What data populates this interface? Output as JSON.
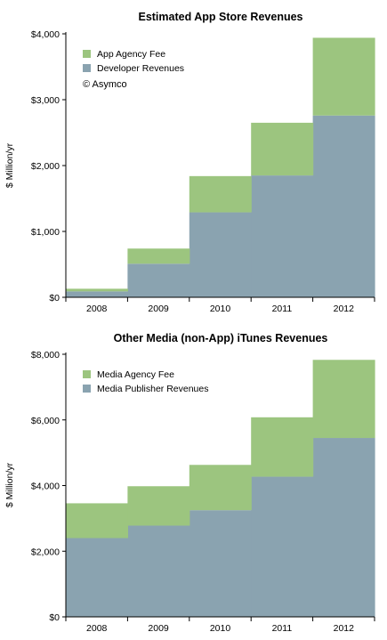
{
  "colors": {
    "fee": "#9cc57f",
    "revenue": "#8aa3b0"
  },
  "copyright": "© Asymco",
  "chart_data": [
    {
      "type": "area",
      "title": "Estimated App Store Revenues",
      "ylabel": "$ Million/yr",
      "xlabel": "",
      "stacked": true,
      "step": true,
      "categories": [
        "2008",
        "2009",
        "2010",
        "2011",
        "2012"
      ],
      "ylim": [
        0,
        4000
      ],
      "yticks": [
        0,
        1000,
        2000,
        3000,
        4000
      ],
      "ytick_labels": [
        "$0",
        "$1,000",
        "$2,000",
        "$3,000",
        "$4,000"
      ],
      "legend_position": "top-left",
      "series": [
        {
          "name": "Developer Revenues",
          "color": "#8aa3b0",
          "values": [
            90,
            510,
            1290,
            1850,
            2760
          ]
        },
        {
          "name": "App Agency Fee",
          "color": "#9cc57f",
          "values": [
            40,
            230,
            550,
            800,
            1180
          ]
        }
      ],
      "legend": [
        "App Agency Fee",
        "Developer Revenues"
      ],
      "grid": false
    },
    {
      "type": "area",
      "title": "Other Media (non-App) iTunes Revenues",
      "ylabel": "$ Million/yr",
      "xlabel": "",
      "stacked": true,
      "step": true,
      "categories": [
        "2008",
        "2009",
        "2010",
        "2011",
        "2012"
      ],
      "ylim": [
        0,
        8000
      ],
      "yticks": [
        0,
        2000,
        4000,
        6000,
        8000
      ],
      "ytick_labels": [
        "$0",
        "$2,000",
        "$4,000",
        "$6,000",
        "$8,000"
      ],
      "legend_position": "top-left",
      "series": [
        {
          "name": "Media Publisher Revenues",
          "color": "#8aa3b0",
          "values": [
            2400,
            2780,
            3250,
            4270,
            5450
          ]
        },
        {
          "name": "Media Agency Fee",
          "color": "#9cc57f",
          "values": [
            1060,
            1200,
            1380,
            1810,
            2380
          ]
        }
      ],
      "legend": [
        "Media Agency Fee",
        "Media Publisher Revenues"
      ],
      "grid": false
    }
  ]
}
